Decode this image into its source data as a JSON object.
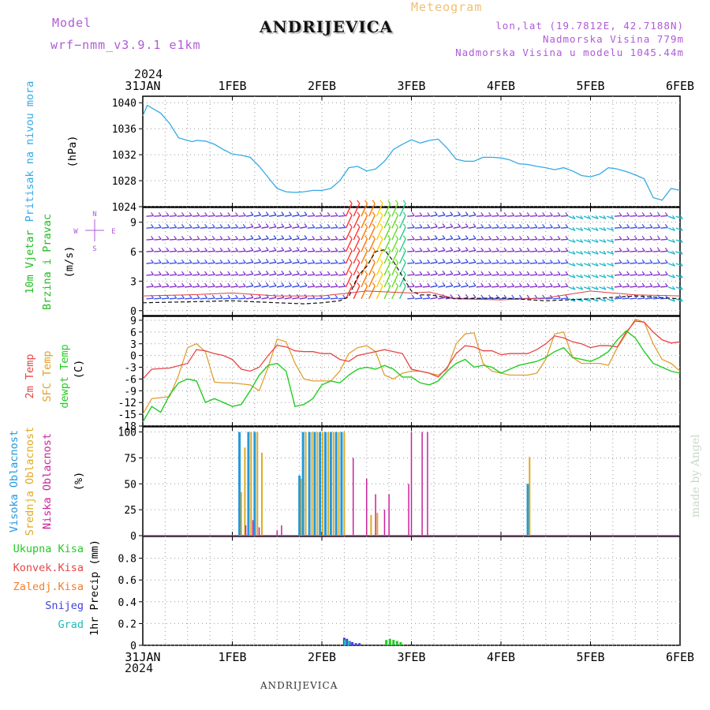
{
  "header": {
    "model_label": "Model",
    "model_name": "wrf−nmm_v3.9.1  e1km",
    "station": "ANDRIJEVICA",
    "product": "Meteogram",
    "lonlat": "lon,lat (19.7812E, 42.7188N)",
    "elevation": "Nadmorska Visina 779m",
    "model_elevation": "Nadmorska Visina u modelu 1045.44m"
  },
  "time_axis": {
    "year": "2024",
    "dates": [
      "31JAN",
      "1FEB",
      "2FEB",
      "3FEB",
      "4FEB",
      "5FEB",
      "6FEB"
    ]
  },
  "footer": {
    "station": "ANDRIJEVICA",
    "credit": "made by Angel"
  },
  "colors": {
    "pressure": "#33aae6",
    "wind_speed": "#111111",
    "gust": "#e63c3c",
    "temp2m": "#e64646",
    "sfc_temp": "#e0a030",
    "dewpt": "#22cc22",
    "high_cloud": "#2299dd",
    "mid_cloud": "#ddaa22",
    "low_cloud": "#cc2299",
    "precip_total": "#22cc22",
    "precip_conv": "#e64646",
    "freezing_rain": "#f08030",
    "snow": "#4040e0",
    "hail": "#22bbbb"
  },
  "chart_data": [
    {
      "type": "line",
      "panel": "pressure",
      "ylabels": [
        "Pritisak na nivou mora",
        "(hPa)"
      ],
      "ylim": [
        1024,
        1041
      ],
      "yticks": [
        1024,
        1028,
        1032,
        1036,
        1040
      ],
      "xlim": [
        0,
        6
      ],
      "grid": true,
      "series": [
        {
          "x": [
            0,
            0.05,
            0.1,
            0.2,
            0.3,
            0.4,
            0.5,
            0.55,
            0.6,
            0.7,
            0.8,
            0.9,
            1.0,
            1.1,
            1.2,
            1.3,
            1.4,
            1.5,
            1.6,
            1.7,
            1.8,
            1.9,
            2.0,
            2.1,
            2.2,
            2.3,
            2.4,
            2.5,
            2.6,
            2.7,
            2.8,
            2.9,
            3.0,
            3.1,
            3.2,
            3.3,
            3.4,
            3.5,
            3.6,
            3.7,
            3.8,
            3.9,
            4.0,
            4.1,
            4.2,
            4.3,
            4.4,
            4.5,
            4.6,
            4.7,
            4.8,
            4.9,
            5.0,
            5.1,
            5.2,
            5.3,
            5.4,
            5.5,
            5.6,
            5.7,
            5.8,
            5.9,
            6.0
          ],
          "y": [
            1038.0,
            1039.6,
            1039.2,
            1038.4,
            1036.8,
            1034.6,
            1034.2,
            1034.0,
            1034.2,
            1034.1,
            1033.6,
            1032.8,
            1032.1,
            1031.9,
            1031.6,
            1030.2,
            1028.5,
            1026.8,
            1026.3,
            1026.2,
            1026.3,
            1026.5,
            1026.5,
            1026.8,
            1028.0,
            1030.0,
            1030.2,
            1029.5,
            1029.8,
            1031.0,
            1032.8,
            1033.6,
            1034.3,
            1033.8,
            1034.2,
            1034.4,
            1033.0,
            1031.3,
            1031.0,
            1031.0,
            1031.6,
            1031.6,
            1031.5,
            1031.2,
            1030.6,
            1030.5,
            1030.2,
            1030.0,
            1029.7,
            1030.0,
            1029.5,
            1028.8,
            1028.6,
            1029.0,
            1030.0,
            1029.8,
            1029.4,
            1028.9,
            1028.3,
            1025.4,
            1025.0,
            1026.8,
            1026.5
          ]
        }
      ]
    },
    {
      "type": "line",
      "panel": "wind",
      "ylabels": [
        "10m Vjetar",
        "Brzina i Pravac",
        "(m/s)"
      ],
      "direction_legend": "N, S, E, W",
      "ylim": [
        -0.5,
        10.5
      ],
      "yticks": [
        0,
        3,
        6,
        9
      ],
      "xlim": [
        0,
        6
      ],
      "grid": true,
      "series": [
        {
          "name": "speed",
          "x": [
            0,
            0.5,
            1.0,
            1.5,
            1.8,
            2.0,
            2.2,
            2.3,
            2.4,
            2.5,
            2.6,
            2.7,
            2.8,
            2.9,
            3.0,
            3.1,
            3.2,
            3.5,
            4.0,
            4.5,
            5.0,
            5.5,
            6.0
          ],
          "y": [
            0.8,
            0.9,
            1.0,
            0.8,
            0.7,
            0.8,
            1.0,
            1.4,
            3.5,
            4.5,
            6.0,
            6.2,
            5.0,
            3.5,
            2.0,
            1.6,
            1.6,
            1.2,
            1.3,
            1.0,
            1.2,
            1.5,
            1.2
          ]
        },
        {
          "name": "gust",
          "x": [
            0,
            0.5,
            1.0,
            1.5,
            2.0,
            2.5,
            3.0,
            3.2,
            3.5,
            4.0,
            4.5,
            5.0,
            5.5,
            6.0
          ],
          "y": [
            1.5,
            1.6,
            1.8,
            1.5,
            1.5,
            2.0,
            1.8,
            1.9,
            1.2,
            1.1,
            1.3,
            2.0,
            1.6,
            1.5
          ]
        }
      ]
    },
    {
      "type": "line",
      "panel": "temperature",
      "ylabels": [
        "2m Temp",
        "SFC Temp",
        "dewpt Temp",
        "(C)"
      ],
      "ylim": [
        -18,
        10
      ],
      "yticks": [
        -18,
        -15,
        -12,
        -9,
        -6,
        -3,
        0,
        3,
        6,
        9
      ],
      "xlim": [
        0,
        6
      ],
      "grid": true,
      "series": [
        {
          "name": "2m Temp",
          "x": [
            0,
            0.1,
            0.3,
            0.5,
            0.6,
            0.7,
            0.8,
            0.9,
            1.0,
            1.1,
            1.2,
            1.3,
            1.4,
            1.5,
            1.6,
            1.7,
            1.8,
            1.9,
            2.0,
            2.1,
            2.2,
            2.3,
            2.4,
            2.5,
            2.6,
            2.7,
            2.8,
            2.9,
            3.0,
            3.1,
            3.2,
            3.3,
            3.4,
            3.5,
            3.6,
            3.7,
            3.8,
            3.9,
            4.0,
            4.1,
            4.2,
            4.3,
            4.4,
            4.5,
            4.6,
            4.7,
            4.8,
            4.9,
            5.0,
            5.1,
            5.2,
            5.3,
            5.4,
            5.5,
            5.6,
            5.7,
            5.8,
            5.9,
            6.0
          ],
          "y": [
            -6,
            -3.5,
            -3.2,
            -2.0,
            1.5,
            1.2,
            0.5,
            0,
            -1,
            -3.5,
            -4,
            -3,
            0,
            2.6,
            2.2,
            1.2,
            1,
            1,
            0.5,
            0.5,
            -1,
            -1.5,
            0,
            0.5,
            1,
            1.5,
            1,
            0.5,
            -3.5,
            -4,
            -4.5,
            -5.5,
            -3,
            0.5,
            2.5,
            2.2,
            1.2,
            1.2,
            0.2,
            0.5,
            0.5,
            0.5,
            1.5,
            3,
            5,
            4.5,
            3.5,
            3,
            2,
            2.5,
            2.5,
            2.2,
            6,
            8.8,
            8.5,
            6,
            4,
            3.2,
            3.5
          ]
        },
        {
          "name": "SFC Temp",
          "x": [
            0,
            0.1,
            0.3,
            0.4,
            0.5,
            0.6,
            0.7,
            0.8,
            0.9,
            1.0,
            1.2,
            1.3,
            1.4,
            1.5,
            1.6,
            1.7,
            1.8,
            1.9,
            2.0,
            2.1,
            2.2,
            2.3,
            2.4,
            2.5,
            2.6,
            2.7,
            2.8,
            2.9,
            3.0,
            3.1,
            3.2,
            3.3,
            3.4,
            3.5,
            3.6,
            3.7,
            3.8,
            3.9,
            4.0,
            4.1,
            4.2,
            4.3,
            4.4,
            4.5,
            4.6,
            4.7,
            4.8,
            4.9,
            5.0,
            5.1,
            5.2,
            5.3,
            5.4,
            5.5,
            5.6,
            5.7,
            5.8,
            5.9,
            6.0
          ],
          "y": [
            -15,
            -11,
            -10.5,
            -5,
            2,
            3,
            1,
            -6.8,
            -7,
            -7,
            -7.5,
            -9,
            -3,
            4.2,
            3.5,
            -2,
            -6,
            -6.5,
            -6.5,
            -6.5,
            -4,
            0.5,
            2,
            2.5,
            1,
            -5,
            -6,
            -4.5,
            -4,
            -4,
            -4.5,
            -5,
            -3.5,
            3,
            5.5,
            5.8,
            -2,
            -4,
            -4.5,
            -5,
            -5,
            -5,
            -4.5,
            -1,
            5.5,
            6,
            -0.5,
            -2,
            -2,
            -2,
            -2.5,
            2,
            5.5,
            9.3,
            8.5,
            3,
            -1,
            -2,
            -4
          ]
        },
        {
          "name": "dewpt Temp",
          "x": [
            0,
            0.1,
            0.2,
            0.3,
            0.4,
            0.5,
            0.6,
            0.7,
            0.8,
            0.9,
            1.0,
            1.1,
            1.2,
            1.3,
            1.4,
            1.5,
            1.6,
            1.7,
            1.8,
            1.9,
            2.0,
            2.1,
            2.2,
            2.3,
            2.4,
            2.5,
            2.6,
            2.7,
            2.8,
            2.9,
            3.0,
            3.1,
            3.2,
            3.3,
            3.4,
            3.5,
            3.6,
            3.7,
            3.8,
            3.9,
            4.0,
            4.1,
            4.2,
            4.3,
            4.4,
            4.5,
            4.6,
            4.7,
            4.8,
            4.9,
            5.0,
            5.1,
            5.2,
            5.3,
            5.4,
            5.5,
            5.6,
            5.7,
            5.8,
            5.9,
            6.0
          ],
          "y": [
            -17,
            -13,
            -14.5,
            -10,
            -7,
            -6,
            -6.5,
            -12,
            -11,
            -12,
            -13,
            -12.5,
            -9,
            -5,
            -2.5,
            -2,
            -4,
            -13,
            -12.5,
            -11,
            -7.5,
            -6.5,
            -7,
            -5,
            -3.5,
            -3,
            -3.5,
            -2.5,
            -3.5,
            -5.5,
            -5.5,
            -7,
            -7.5,
            -6.5,
            -4,
            -2,
            -1,
            -3,
            -2.5,
            -3,
            -4.5,
            -3.5,
            -2.5,
            -2,
            -1.5,
            -0.5,
            1,
            2,
            -0.5,
            -1,
            -1.5,
            -0.5,
            1,
            4,
            6.3,
            4.5,
            1,
            -2,
            -3,
            -4,
            -4.5
          ]
        }
      ]
    },
    {
      "type": "bar",
      "panel": "cloud",
      "ylabels": [
        "Visoka Oblacnost",
        "Srednja Oblacnost",
        "Niska Oblacnost",
        "(%)"
      ],
      "ylim": [
        0,
        105
      ],
      "yticks": [
        0,
        25,
        50,
        75,
        100
      ],
      "xlim": [
        0,
        6
      ],
      "grid": true,
      "series": [
        {
          "name": "Visoka Oblacnost",
          "x": [
            1.08,
            1.18,
            1.25,
            1.75,
            1.79,
            1.86,
            1.92,
            1.98,
            2.04,
            2.1,
            2.16,
            2.22,
            4.3
          ],
          "y": [
            100,
            100,
            100,
            58,
            100,
            100,
            100,
            100,
            100,
            100,
            100,
            100,
            50
          ]
        },
        {
          "name": "Srednja Oblacnost",
          "x": [
            1.1,
            1.14,
            1.21,
            1.28,
            1.33,
            1.77,
            1.82,
            1.89,
            1.95,
            2.01,
            2.07,
            2.13,
            2.19,
            2.25,
            2.55,
            2.62,
            4.32
          ],
          "y": [
            42,
            85,
            100,
            100,
            80,
            55,
            100,
            100,
            100,
            100,
            100,
            100,
            100,
            100,
            20,
            22,
            76
          ]
        },
        {
          "name": "Niska Oblacnost",
          "x": [
            1.15,
            1.23,
            1.3,
            1.5,
            1.55,
            2.35,
            2.5,
            2.6,
            2.7,
            2.75,
            2.97,
            3.0,
            3.12,
            3.18
          ],
          "y": [
            10,
            15,
            8,
            5,
            10,
            75,
            55,
            40,
            25,
            40,
            50,
            100,
            100,
            100
          ]
        }
      ]
    },
    {
      "type": "bar",
      "panel": "precip",
      "ylabels": [
        "Ukupna Kisa",
        "Konvek.Kisa",
        "Zaledj.Kisa",
        "Snijeg",
        "Grad",
        "1hr Precip (mm)"
      ],
      "ylim": [
        0,
        1.0
      ],
      "yticks": [
        0,
        0.2,
        0.4,
        0.6,
        0.8
      ],
      "xlim": [
        0,
        6
      ],
      "grid": true,
      "series": [
        {
          "name": "Ukupna Kisa",
          "x": [
            2.72,
            2.76,
            2.8,
            2.84,
            2.88
          ],
          "y": [
            0.05,
            0.06,
            0.05,
            0.04,
            0.03
          ]
        },
        {
          "name": "Snijeg",
          "x": [
            2.25,
            2.28,
            2.31,
            2.34,
            2.38,
            2.42
          ],
          "y": [
            0.07,
            0.06,
            0.04,
            0.03,
            0.02,
            0.02
          ]
        },
        {
          "name": "Grad",
          "x": [
            2.26,
            2.3
          ],
          "y": [
            0.05,
            0.04
          ]
        }
      ]
    }
  ]
}
